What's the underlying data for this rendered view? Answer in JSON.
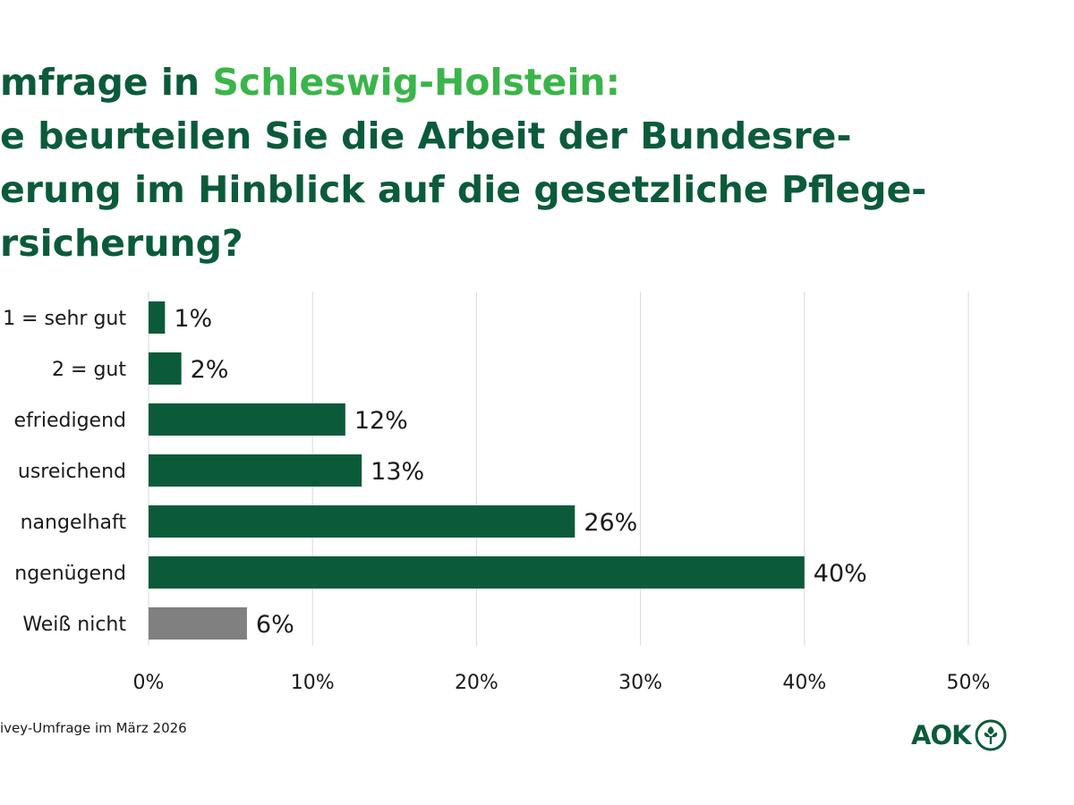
{
  "title": {
    "line1_prefix": "mfrage in ",
    "line1_highlight": "Schleswig-Holstein:",
    "line2": "e beurteilen Sie die Arbeit der Bundesre-",
    "line3": "erung im Hinblick auf die gesetzliche Pflege-",
    "line4": "rsicherung?"
  },
  "source": "ivey-Umfrage im März 2026",
  "logo": {
    "text": "AOK"
  },
  "colors": {
    "primary": "#0b5b3b",
    "accent": "#3ab54a",
    "neutral": "#808080",
    "grid": "#d9d9d9"
  },
  "chart_data": {
    "type": "bar",
    "orientation": "horizontal",
    "categories": [
      "1 = sehr gut",
      "2 = gut",
      "efriedigend",
      "usreichend",
      "nangelhaft",
      "ngenügend",
      "Weiß nicht"
    ],
    "values": [
      1,
      2,
      12,
      13,
      26,
      40,
      6
    ],
    "value_labels": [
      "1%",
      "2%",
      "12%",
      "13%",
      "26%",
      "40%",
      "6%"
    ],
    "bar_colors": [
      "#0b5b3b",
      "#0b5b3b",
      "#0b5b3b",
      "#0b5b3b",
      "#0b5b3b",
      "#0b5b3b",
      "#808080"
    ],
    "xlim": [
      0,
      50
    ],
    "x_ticks": [
      0,
      10,
      20,
      30,
      40,
      50
    ],
    "x_tick_labels": [
      "0%",
      "10%",
      "20%",
      "30%",
      "40%",
      "50%"
    ],
    "grid": true
  }
}
